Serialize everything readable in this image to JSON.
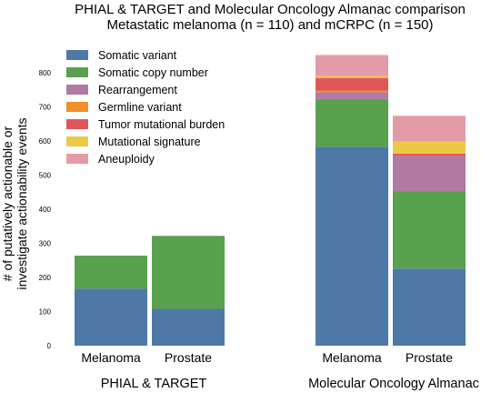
{
  "chart_data": {
    "type": "bar",
    "stacked": true,
    "title": "PHIAL & TARGET and Molecular Oncology Almanac comparison",
    "subtitle": "Metastatic melanoma (n = 110) and mCRPC (n = 150)",
    "ylabel_line1": "# of putatively actionable or",
    "ylabel_line2": "investigate actionability events",
    "ylim": [
      0,
      880
    ],
    "yticks": [
      0,
      100,
      200,
      300,
      400,
      500,
      600,
      700,
      800
    ],
    "grid": false,
    "legend_position": "top-left",
    "groups": [
      "PHIAL & TARGET",
      "Molecular Oncology Almanac"
    ],
    "categories": [
      "Melanoma",
      "Prostate",
      "Melanoma",
      "Prostate"
    ],
    "series": [
      {
        "name": "Somatic variant",
        "color": "#4e79a7",
        "values": [
          167,
          108,
          583,
          226
        ]
      },
      {
        "name": "Somatic copy number",
        "color": "#59a14f",
        "values": [
          97,
          214,
          140,
          226
        ]
      },
      {
        "name": "Rearrangement",
        "color": "#b07aa1",
        "values": [
          0,
          0,
          20,
          105
        ]
      },
      {
        "name": "Germline variant",
        "color": "#f28e2b",
        "values": [
          0,
          0,
          5,
          0
        ]
      },
      {
        "name": "Tumor mutational burden",
        "color": "#e15759",
        "values": [
          0,
          0,
          37,
          6
        ]
      },
      {
        "name": "Mutational signature",
        "color": "#edc948",
        "values": [
          0,
          0,
          5,
          35
        ]
      },
      {
        "name": "Aneuploidy",
        "color": "#e39ba7",
        "values": [
          0,
          0,
          62,
          76
        ]
      }
    ]
  }
}
